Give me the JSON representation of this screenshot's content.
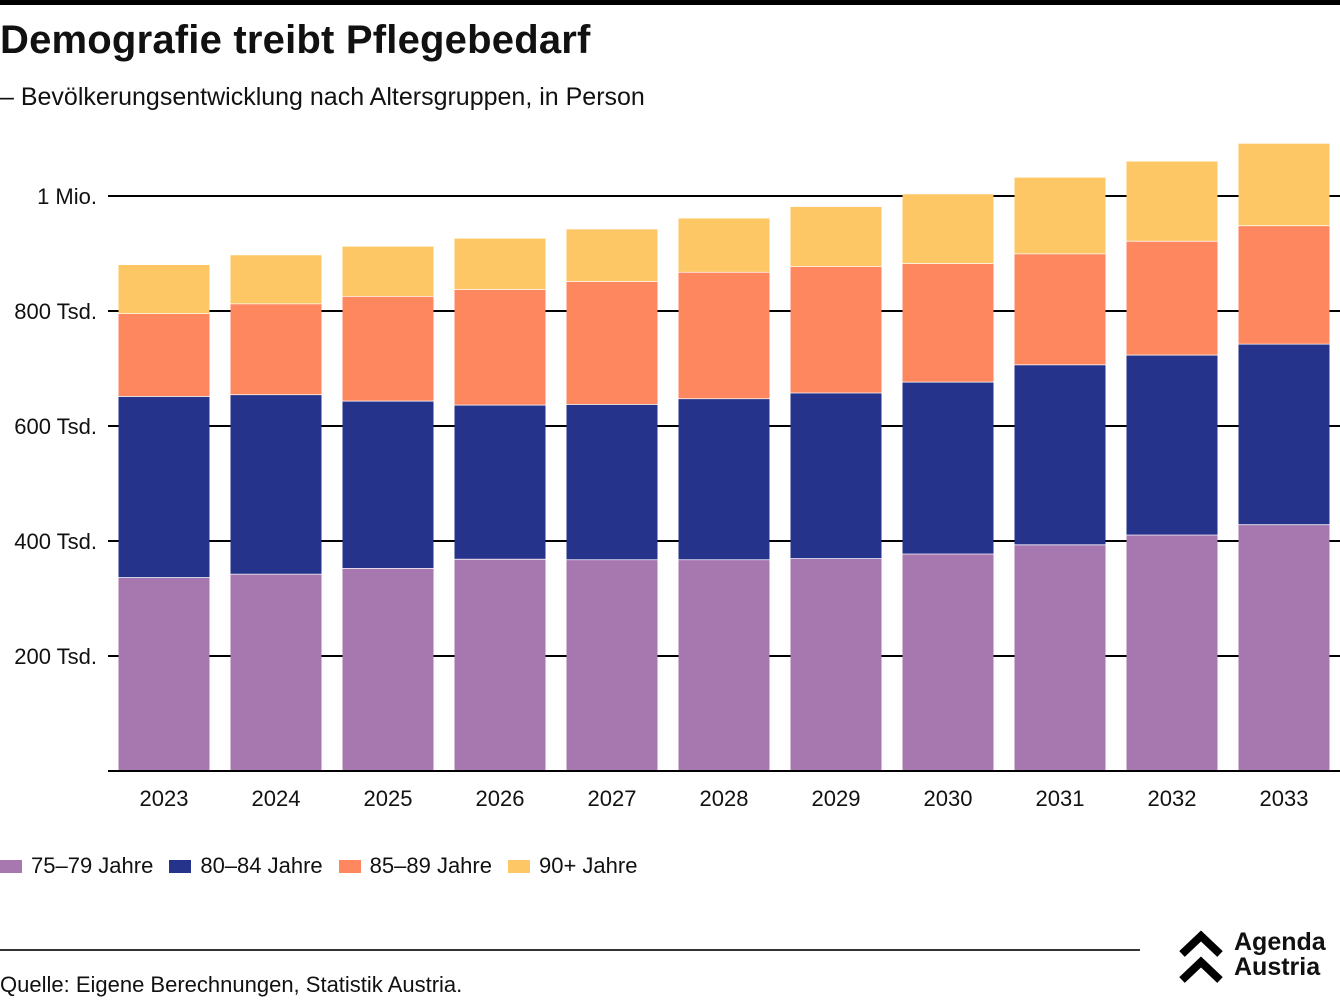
{
  "header": {
    "title": "Demografie treibt Pflegebedarf",
    "subtitle": "– Bevölkerungsentwicklung nach Altersgruppen, in Person"
  },
  "chart_data": {
    "type": "bar",
    "stacked": true,
    "title": "Demografie treibt Pflegebedarf",
    "subtitle": "– Bevölkerungsentwicklung nach Altersgruppen, in Person",
    "xlabel": "",
    "ylabel": "",
    "categories": [
      "2023",
      "2024",
      "2025",
      "2026",
      "2027",
      "2028",
      "2029",
      "2030",
      "2031",
      "2032",
      "2033"
    ],
    "series": [
      {
        "name": "75–79 Jahre",
        "color": "#a777b0",
        "values": [
          337000,
          343000,
          353000,
          369000,
          368000,
          368000,
          370000,
          378000,
          394000,
          411000,
          429000
        ]
      },
      {
        "name": "80–84 Jahre",
        "color": "#26338a",
        "values": [
          315000,
          312000,
          291000,
          268000,
          270000,
          280000,
          288000,
          299000,
          313000,
          313000,
          314000
        ]
      },
      {
        "name": "85–89 Jahre",
        "color": "#fe875f",
        "values": [
          144000,
          158000,
          182000,
          201000,
          214000,
          220000,
          220000,
          206000,
          193000,
          198000,
          206000
        ]
      },
      {
        "name": "90+ Jahre",
        "color": "#fcc764",
        "values": [
          84000,
          84000,
          86000,
          88000,
          90000,
          93000,
          103000,
          120000,
          132000,
          138000,
          142000
        ]
      }
    ],
    "yticks": [
      {
        "value": 200000,
        "label": "200 Tsd."
      },
      {
        "value": 400000,
        "label": "400 Tsd."
      },
      {
        "value": 600000,
        "label": "600 Tsd."
      },
      {
        "value": 800000,
        "label": "800 Tsd."
      },
      {
        "value": 1000000,
        "label": "1 Mio."
      }
    ],
    "ylim": [
      0,
      1100000
    ],
    "grid": true,
    "legend_position": "bottom-left"
  },
  "legend": {
    "items": [
      {
        "label": "75–79 Jahre",
        "color": "#a777b0"
      },
      {
        "label": "80–84 Jahre",
        "color": "#26338a"
      },
      {
        "label": "85–89 Jahre",
        "color": "#fe875f"
      },
      {
        "label": "90+ Jahre",
        "color": "#fcc764"
      }
    ]
  },
  "footer": {
    "source": "Quelle: Eigene Berechnungen, Statistik Austria.",
    "logo_line1": "Agenda",
    "logo_line2": "Austria"
  }
}
